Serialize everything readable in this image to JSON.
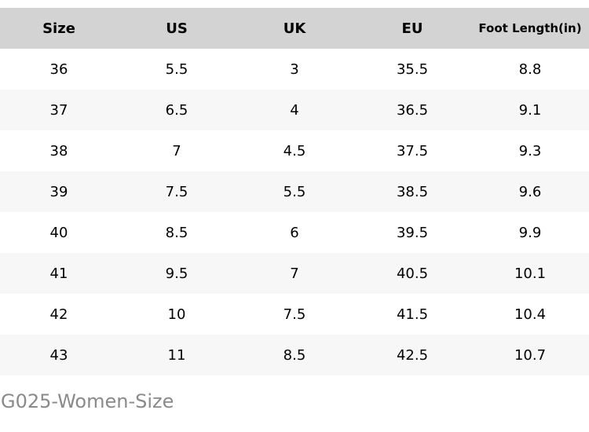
{
  "chart_data": {
    "type": "table",
    "title": "",
    "columns": [
      "Size",
      "US",
      "UK",
      "EU",
      "Foot Length(in)"
    ],
    "rows": [
      [
        "36",
        "5.5",
        "3",
        "35.5",
        "8.8"
      ],
      [
        "37",
        "6.5",
        "4",
        "36.5",
        "9.1"
      ],
      [
        "38",
        "7",
        "4.5",
        "37.5",
        "9.3"
      ],
      [
        "39",
        "7.5",
        "5.5",
        "38.5",
        "9.6"
      ],
      [
        "40",
        "8.5",
        "6",
        "39.5",
        "9.9"
      ],
      [
        "41",
        "9.5",
        "7",
        "40.5",
        "10.1"
      ],
      [
        "42",
        "10",
        "7.5",
        "41.5",
        "10.4"
      ],
      [
        "43",
        "11",
        "8.5",
        "42.5",
        "10.7"
      ]
    ],
    "caption": "G025-Women-Size",
    "layout_hints": {
      "header_bg": "#d3d3d3",
      "row_alt_bg": "#f7f7f7",
      "row_bg": "#ffffff",
      "text_color": "#000000",
      "caption_color": "#8a8a8a",
      "grid": false,
      "column_alignment": "center"
    }
  }
}
